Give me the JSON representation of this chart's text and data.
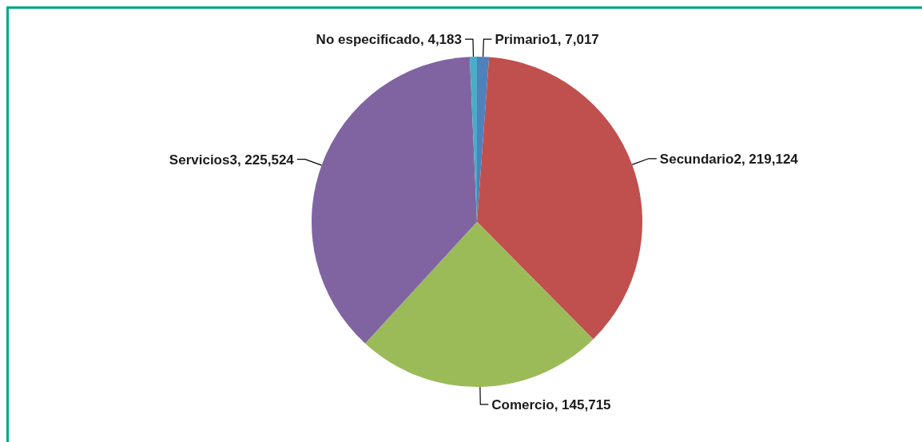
{
  "chart_data": {
    "type": "pie",
    "categories": [
      "Primario1",
      "Secundario2",
      "Comercio",
      "Servicios3",
      "No especificado"
    ],
    "values": [
      7017,
      219124,
      145715,
      225524,
      4183
    ],
    "colors": [
      "#4f81bd",
      "#c0504d",
      "#9bbb59",
      "#8064a2",
      "#4bacc6"
    ],
    "value_labels": [
      "7,017",
      "219,124",
      "145,715",
      "225,524",
      "4,183"
    ]
  }
}
